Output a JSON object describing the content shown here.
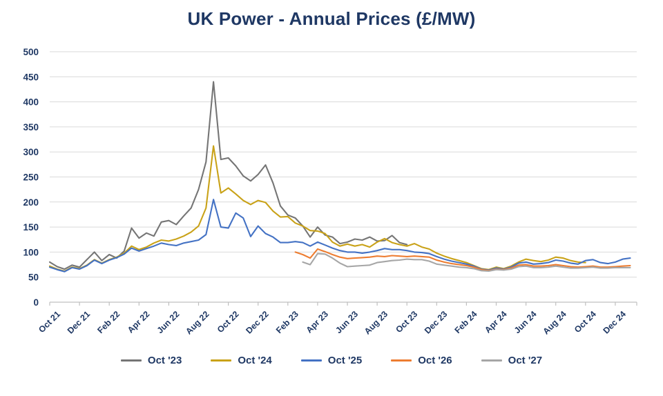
{
  "title": "UK Power - Annual Prices (£/MW)",
  "colors": {
    "title_text": "#1F3864",
    "axis_text": "#1F3864",
    "gridline": "#D9D9D9",
    "axis_line": "#BFBFBF",
    "background": "#FFFFFF"
  },
  "chart_data": {
    "type": "line",
    "title": "UK Power - Annual Prices (£/MW)",
    "xlabel": "",
    "ylabel": "",
    "ylim": [
      0,
      500
    ],
    "y_ticks": [
      0,
      50,
      100,
      150,
      200,
      250,
      300,
      350,
      400,
      450,
      500
    ],
    "x_tick_labels": [
      "Oct 21",
      "Dec 21",
      "Feb 22",
      "Apr 22",
      "Jun 22",
      "Aug 22",
      "Oct 22",
      "Dec 22",
      "Feb 23",
      "Apr 23",
      "Jun 23",
      "Aug 23",
      "Oct 23",
      "Dec 23",
      "Feb 24",
      "Apr 24",
      "Jun 24",
      "Aug 24",
      "Oct 24",
      "Dec 24"
    ],
    "x_tick_interval_months": 2,
    "x_unit": "months since Oct 2021, values sampled every 0.5 month",
    "grid": "horizontal",
    "legend_position": "bottom",
    "series": [
      {
        "name": "Oct '23",
        "color": "#757575",
        "start_month": 0,
        "step_months": 0.5,
        "values": [
          80,
          71,
          66,
          74,
          70,
          85,
          100,
          83,
          95,
          88,
          102,
          148,
          128,
          138,
          132,
          160,
          163,
          155,
          172,
          188,
          225,
          280,
          440,
          285,
          288,
          272,
          252,
          242,
          255,
          274,
          238,
          192,
          174,
          168,
          152,
          130,
          150,
          134,
          130,
          117,
          120,
          126,
          124,
          130,
          122,
          123,
          133,
          119,
          115
        ]
      },
      {
        "name": "Oct '24",
        "color": "#C9A218",
        "start_month": 0,
        "step_months": 0.5,
        "values": [
          72,
          66,
          62,
          70,
          67,
          74,
          85,
          78,
          85,
          90,
          98,
          112,
          105,
          110,
          118,
          124,
          122,
          126,
          132,
          140,
          152,
          188,
          312,
          218,
          228,
          216,
          203,
          195,
          203,
          199,
          182,
          170,
          171,
          158,
          152,
          143,
          142,
          137,
          120,
          112,
          116,
          112,
          115,
          110,
          120,
          127,
          119,
          115,
          112,
          117,
          110,
          106,
          98,
          92,
          87,
          83,
          79,
          73,
          67,
          65,
          70,
          67,
          72,
          80,
          86,
          83,
          81,
          84,
          90,
          88,
          83,
          80,
          79
        ]
      },
      {
        "name": "Oct '25",
        "color": "#4472C4",
        "start_month": 0,
        "step_months": 0.5,
        "values": [
          70,
          65,
          61,
          69,
          66,
          73,
          84,
          77,
          84,
          89,
          96,
          108,
          102,
          107,
          112,
          118,
          115,
          113,
          118,
          121,
          124,
          135,
          205,
          150,
          148,
          178,
          168,
          131,
          152,
          137,
          130,
          119,
          119,
          121,
          119,
          112,
          120,
          114,
          108,
          103,
          100,
          100,
          98,
          100,
          103,
          107,
          105,
          105,
          103,
          100,
          99,
          97,
          91,
          86,
          82,
          79,
          76,
          72,
          66,
          64,
          68,
          66,
          70,
          78,
          80,
          76,
          77,
          79,
          84,
          82,
          78,
          76,
          83,
          85,
          79,
          77,
          80,
          86,
          88
        ]
      },
      {
        "name": "Oct '26",
        "color": "#ED7D31",
        "start_month": 16.5,
        "step_months": 0.5,
        "values": [
          100,
          95,
          88,
          106,
          101,
          95,
          90,
          87,
          88,
          89,
          90,
          92,
          91,
          93,
          92,
          91,
          92,
          91,
          90,
          84,
          80,
          77,
          75,
          73,
          70,
          65,
          63,
          66,
          65,
          68,
          74,
          75,
          72,
          72,
          73,
          75,
          73,
          71,
          70,
          71,
          72,
          70,
          70,
          71,
          72,
          73
        ]
      },
      {
        "name": "Oct '27",
        "color": "#A6A6A6",
        "start_month": 17,
        "step_months": 0.5,
        "values": [
          80,
          75,
          97,
          96,
          88,
          78,
          71,
          72,
          73,
          74,
          79,
          81,
          83,
          84,
          86,
          85,
          85,
          82,
          76,
          74,
          72,
          70,
          69,
          67,
          63,
          62,
          65,
          64,
          66,
          71,
          72,
          69,
          69,
          70,
          72,
          70,
          68,
          68,
          69,
          70,
          68,
          68,
          69,
          69,
          69
        ]
      }
    ]
  }
}
